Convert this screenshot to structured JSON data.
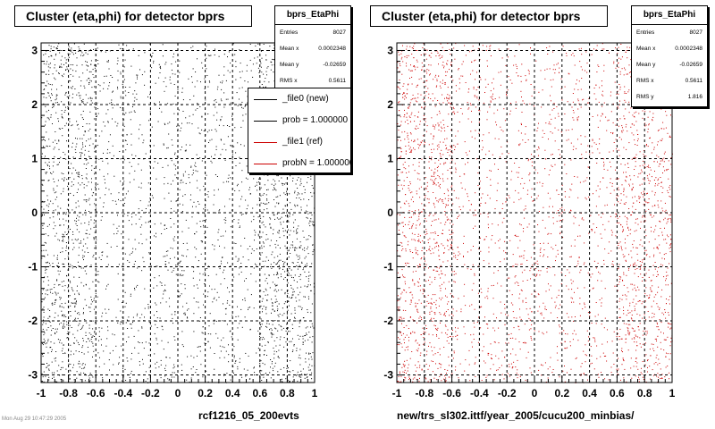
{
  "charts": [
    {
      "title": "Cluster (eta,phi) for detector bprs",
      "caption": "rcf1216_05_200evts",
      "stats": {
        "name": "bprs_EtaPhi",
        "rows": [
          {
            "label": "Entries",
            "value": "8027"
          },
          {
            "label": "Mean x",
            "value": "0.0002348"
          },
          {
            "label": "Mean y",
            "value": "-0.02659"
          },
          {
            "label": "RMS x",
            "value": "0.5611"
          }
        ]
      },
      "legend": [
        {
          "label": "_file0 (new)",
          "color": "#000000"
        },
        {
          "label": "prob = 1.000000",
          "color": "#000000"
        },
        {
          "label": "_file1 (ref)",
          "color": "#cc0000"
        },
        {
          "label": "probN = 1.000000",
          "color": "#cc0000"
        }
      ]
    },
    {
      "title": "Cluster (eta,phi) for detector bprs",
      "caption": "new/trs_sl302.ittf/year_2005/cucu200_minbias/",
      "stats": {
        "name": "bprs_EtaPhi",
        "rows": [
          {
            "label": "Entries",
            "value": "8027"
          },
          {
            "label": "Mean x",
            "value": "0.0002348"
          },
          {
            "label": "Mean y",
            "value": "-0.02659"
          },
          {
            "label": "RMS x",
            "value": "0.5611"
          },
          {
            "label": "RMS y",
            "value": "1.816"
          }
        ]
      }
    }
  ],
  "footer": "Mon Aug 29 10:47:29 2005",
  "chart_data": [
    {
      "type": "scatter",
      "title": "Cluster (eta,phi) for detector bprs",
      "xlabel": "rcf1216_05_200evts",
      "ylabel": "",
      "xlim": [
        -1,
        1
      ],
      "ylim": [
        -3.14,
        3.14
      ],
      "x_ticks": [
        "-1",
        "-0.8",
        "-0.6",
        "-0.4",
        "-0.2",
        "0",
        "0.2",
        "0.4",
        "0.6",
        "0.8",
        "1"
      ],
      "y_ticks": [
        "-3",
        "-2",
        "-1",
        "0",
        "1",
        "2",
        "3"
      ],
      "grid": true,
      "series": [
        {
          "name": "_file0 (new)",
          "color": "#000000",
          "entries": 8027
        }
      ]
    },
    {
      "type": "scatter",
      "title": "Cluster (eta,phi) for detector bprs",
      "xlabel": "new/trs_sl302.ittf/year_2005/cucu200_minbias/",
      "ylabel": "",
      "xlim": [
        -1,
        1
      ],
      "ylim": [
        -3.14,
        3.14
      ],
      "x_ticks": [
        "-1",
        "-0.8",
        "-0.6",
        "-0.4",
        "-0.2",
        "0",
        "0.2",
        "0.4",
        "0.6",
        "0.8",
        "1"
      ],
      "y_ticks": [
        "-3",
        "-2",
        "-1",
        "0",
        "1",
        "2",
        "3"
      ],
      "grid": true,
      "series": [
        {
          "name": "_file1 (ref)",
          "color": "#cc0000",
          "entries": 8027
        }
      ]
    }
  ]
}
